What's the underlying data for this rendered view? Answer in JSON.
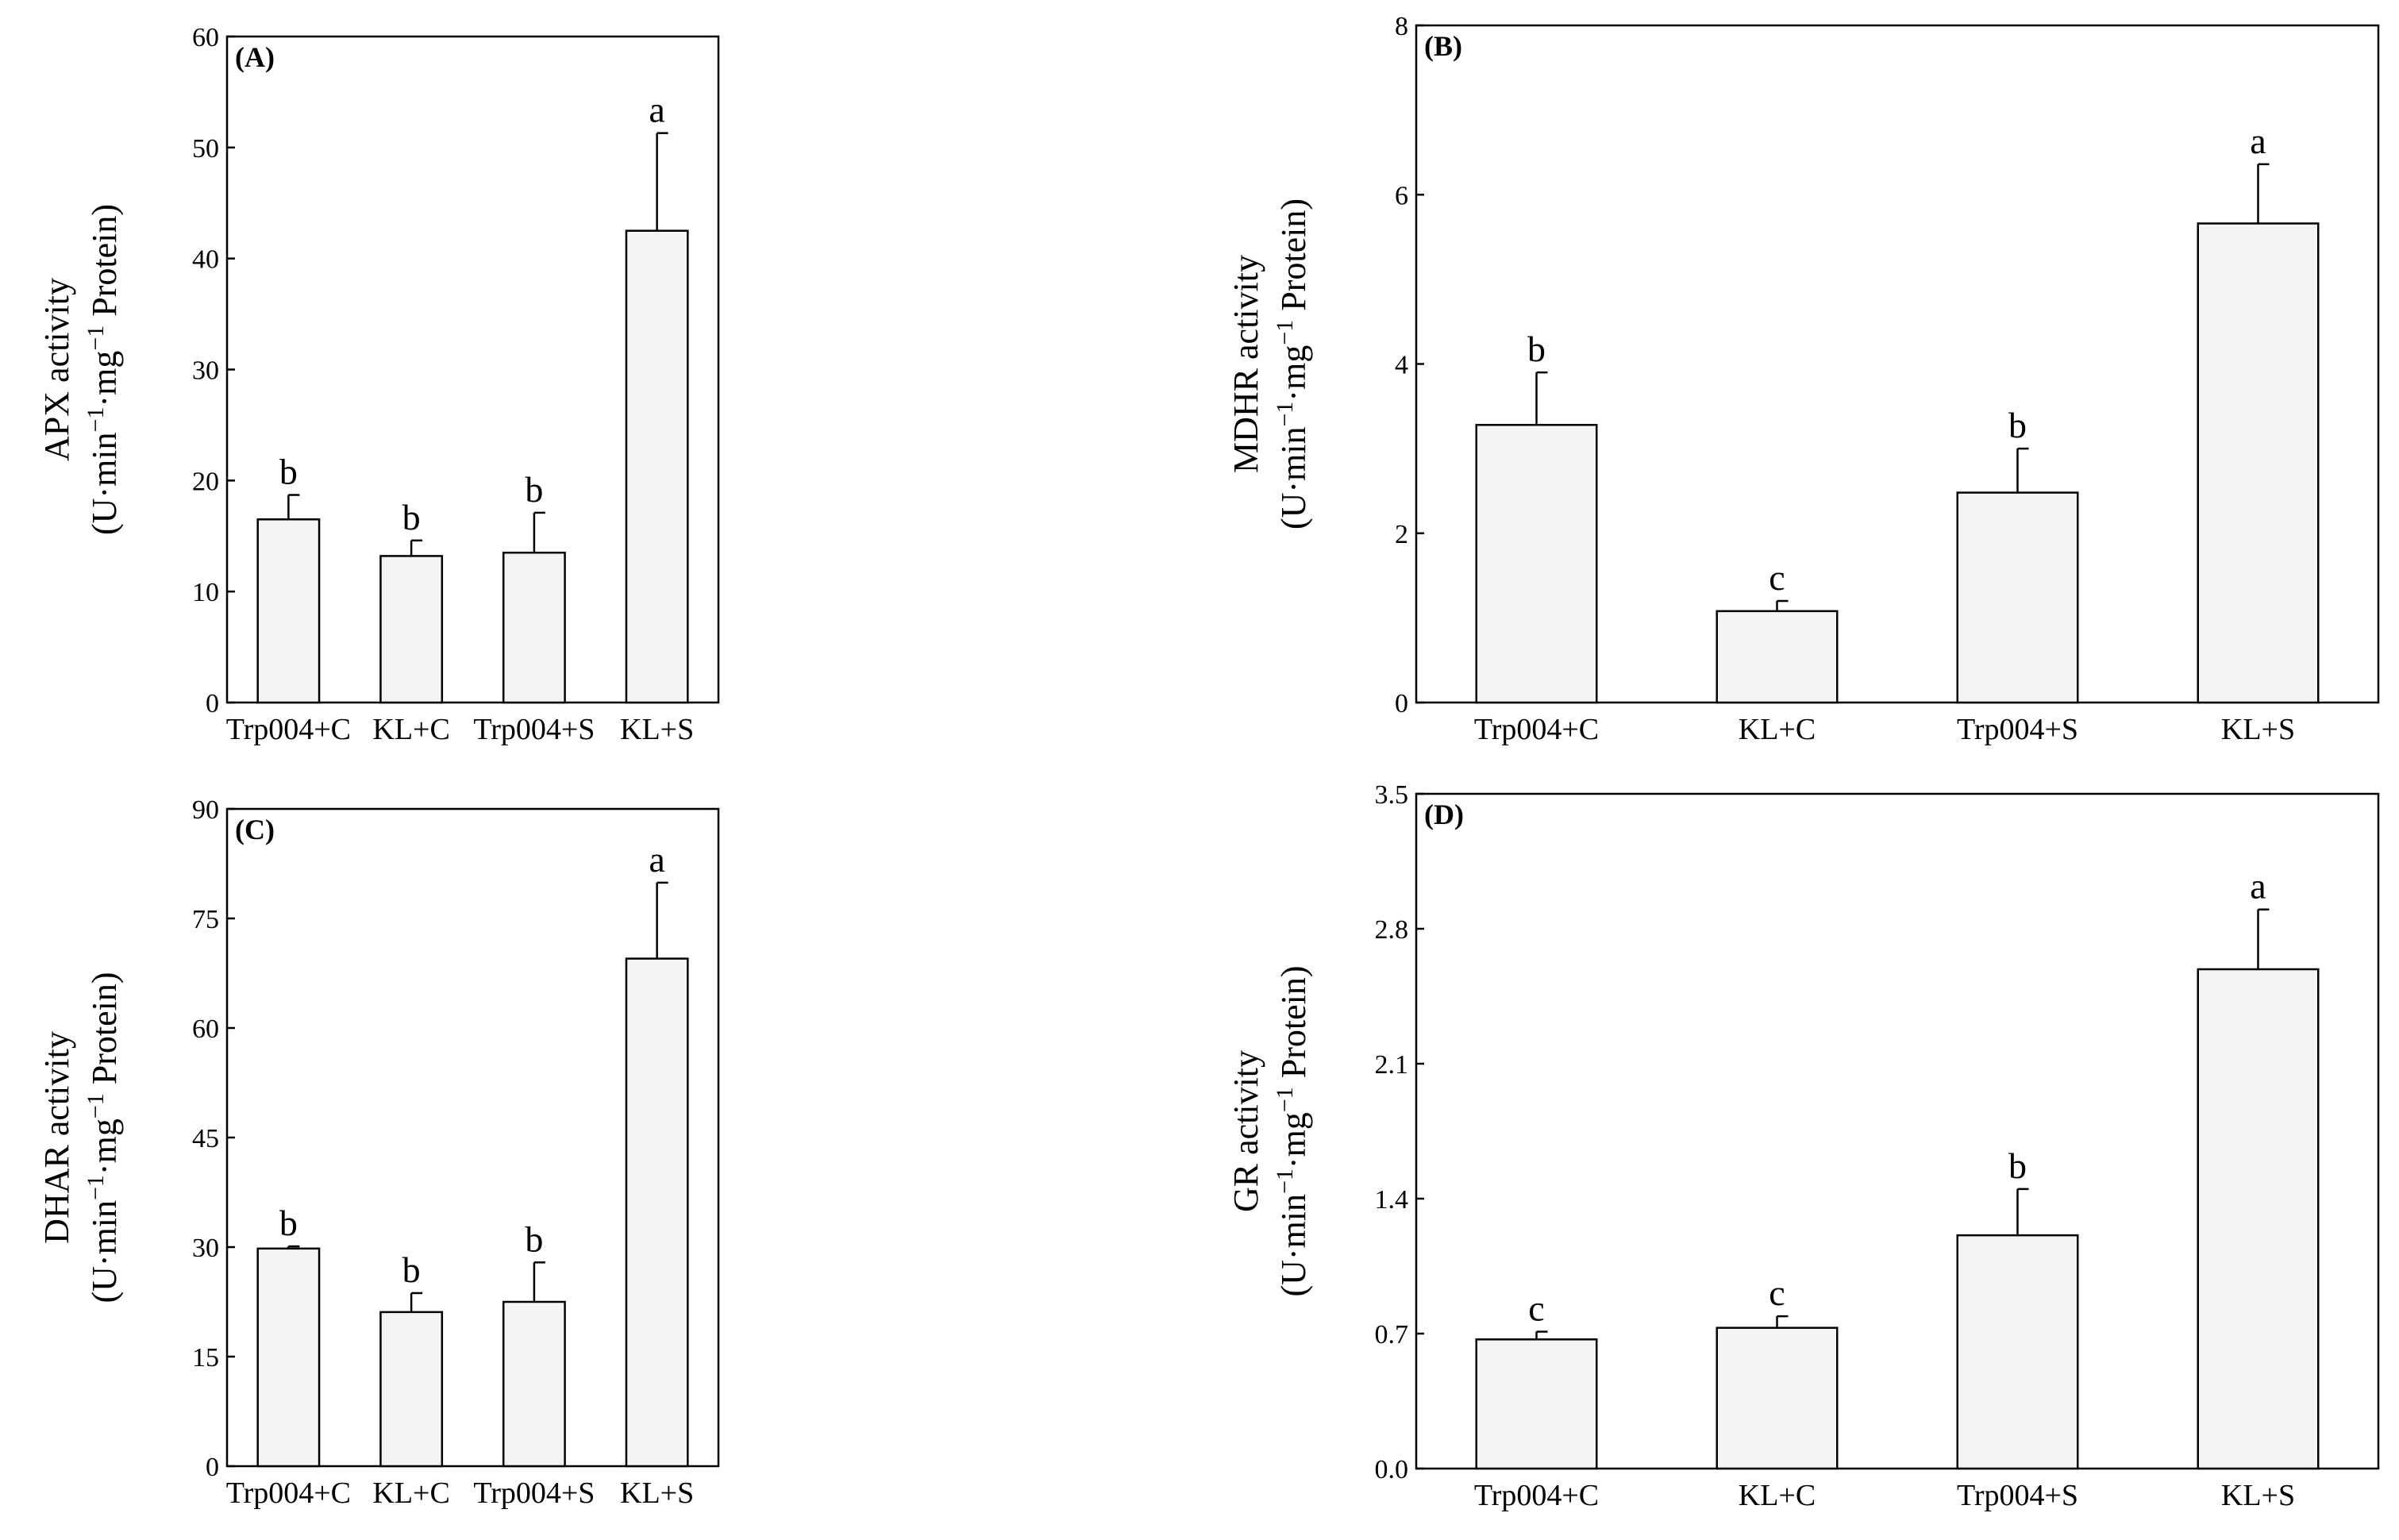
{
  "chart_data": [
    {
      "id": "A",
      "type": "bar",
      "panel_label": "(A)",
      "categories": [
        "Trp004+C",
        "KL+C",
        "Trp004+S",
        "KL+S"
      ],
      "values": [
        16.5,
        13.2,
        13.5,
        42.5
      ],
      "errors": [
        2.2,
        1.4,
        3.6,
        8.8
      ],
      "significance": [
        "b",
        "b",
        "b",
        "a"
      ],
      "ylabel_line1": "APX activity",
      "ylabel_line2_prefix": "(U·min",
      "ylabel_sup1": "−1",
      "ylabel_mid": "·mg",
      "ylabel_sup2": "−1",
      "ylabel_suffix": "  Protein)",
      "ylim": [
        0,
        60
      ],
      "yticks": [
        0,
        10,
        20,
        30,
        40,
        50,
        60
      ],
      "ytick_labels": [
        "0",
        "10",
        "20",
        "30",
        "40",
        "50",
        "60"
      ]
    },
    {
      "id": "B",
      "type": "bar",
      "panel_label": "(B)",
      "categories": [
        "Trp004+C",
        "KL+C",
        "Trp004+S",
        "KL+S"
      ],
      "values": [
        3.28,
        1.08,
        2.48,
        5.66
      ],
      "errors": [
        0.62,
        0.12,
        0.52,
        0.7
      ],
      "significance": [
        "b",
        "c",
        "b",
        "a"
      ],
      "ylabel_line1": "MDHR activity",
      "ylabel_line2_prefix": "(U·min",
      "ylabel_sup1": "−1",
      "ylabel_mid": "·mg",
      "ylabel_sup2": "−1",
      "ylabel_suffix": "  Protein)",
      "ylim": [
        0,
        8
      ],
      "yticks": [
        0,
        2,
        4,
        6,
        8
      ],
      "ytick_labels": [
        "0",
        "2",
        "4",
        "6",
        "8"
      ]
    },
    {
      "id": "C",
      "type": "bar",
      "panel_label": "(C)",
      "categories": [
        "Trp004+C",
        "KL+C",
        "Trp004+S",
        "KL+S"
      ],
      "values": [
        29.8,
        21.1,
        22.5,
        69.5
      ],
      "errors": [
        0.3,
        2.6,
        5.4,
        10.4
      ],
      "significance": [
        "b",
        "b",
        "b",
        "a"
      ],
      "ylabel_line1": "DHAR activity",
      "ylabel_line2_prefix": "(U·min",
      "ylabel_sup1": "−1",
      "ylabel_mid": "·mg",
      "ylabel_sup2": "−1",
      "ylabel_suffix": "  Protein)",
      "ylim": [
        0,
        90
      ],
      "yticks": [
        0,
        15,
        30,
        45,
        60,
        75,
        90
      ],
      "ytick_labels": [
        "0",
        "15",
        "30",
        "45",
        "60",
        "75",
        "90"
      ]
    },
    {
      "id": "D",
      "type": "bar",
      "panel_label": "(D)",
      "categories": [
        "Trp004+C",
        "KL+C",
        "Trp004+S",
        "KL+S"
      ],
      "values": [
        0.67,
        0.73,
        1.21,
        2.59
      ],
      "errors": [
        0.04,
        0.06,
        0.24,
        0.31
      ],
      "significance": [
        "c",
        "c",
        "b",
        "a"
      ],
      "ylabel_line1": "GR activity",
      "ylabel_line2_prefix": "(U·min",
      "ylabel_sup1": "−1",
      "ylabel_mid": "·mg",
      "ylabel_sup2": "−1",
      "ylabel_suffix": "  Protein)",
      "ylim": [
        0,
        3.5
      ],
      "yticks": [
        0,
        0.7,
        1.4,
        2.1,
        2.8,
        3.5
      ],
      "ytick_labels": [
        "0.0",
        "0.7",
        "1.4",
        "2.1",
        "2.8",
        "3.5"
      ]
    }
  ]
}
